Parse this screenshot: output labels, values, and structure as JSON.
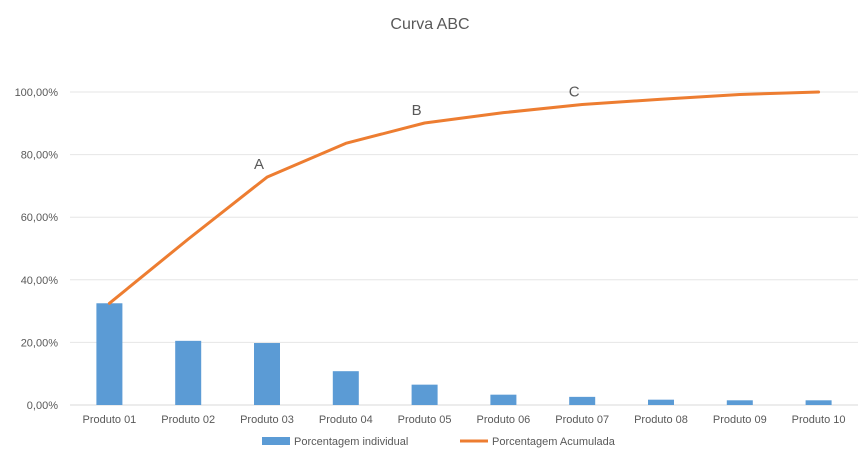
{
  "chart_data": {
    "type": "bar+line",
    "title": "Curva ABC",
    "categories": [
      "Produto 01",
      "Produto 02",
      "Produto 03",
      "Produto 04",
      "Produto 05",
      "Produto 06",
      "Produto 07",
      "Produto 08",
      "Produto 09",
      "Produto 10"
    ],
    "y_ticks": [
      "0,00%",
      "20,00%",
      "40,00%",
      "60,00%",
      "80,00%",
      "100,00%"
    ],
    "ylim": [
      0,
      100
    ],
    "grid": true,
    "legend_position": "bottom",
    "series": [
      {
        "name": "Porcentagem individual",
        "type": "bar",
        "color": "#5B9BD5",
        "values": [
          32.5,
          20.5,
          19.8,
          10.8,
          6.5,
          3.3,
          2.6,
          1.7,
          1.5,
          1.5
        ]
      },
      {
        "name": "Porcentagem Acumulada",
        "type": "line",
        "color": "#ED7D31",
        "values": [
          32.5,
          53.0,
          72.8,
          83.6,
          90.1,
          93.4,
          96.0,
          97.7,
          99.2,
          100.0
        ]
      }
    ],
    "annotations": [
      {
        "text": "A",
        "category_index": 2
      },
      {
        "text": "B",
        "category_index": 4
      },
      {
        "text": "C",
        "category_index": 6
      }
    ]
  }
}
